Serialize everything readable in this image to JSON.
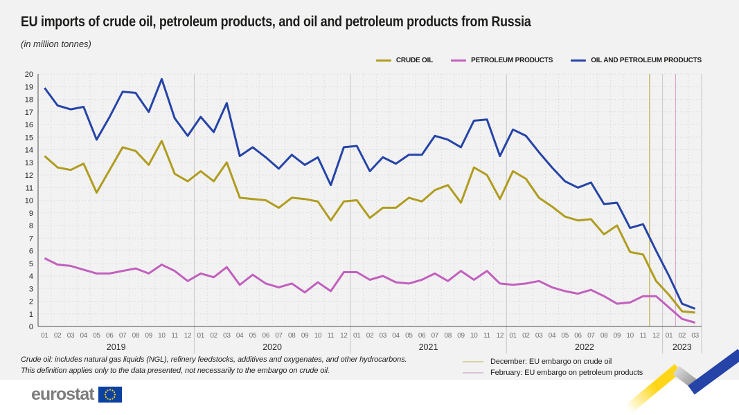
{
  "page": {
    "title": "EU imports of crude oil, petroleum products, and oil and petroleum products from Russia",
    "subtitle": "(in million tonnes)"
  },
  "chart_data": {
    "type": "line",
    "title": "EU imports of crude oil, petroleum products, and oil and petroleum products from Russia",
    "ylabel": "million tonnes",
    "ylim": [
      0,
      20
    ],
    "ytick_step": 1,
    "grid": true,
    "legend_position": "top-right",
    "years": [
      {
        "label": "2019",
        "months": [
          "01",
          "02",
          "03",
          "04",
          "05",
          "06",
          "07",
          "08",
          "09",
          "10",
          "11",
          "12"
        ]
      },
      {
        "label": "2020",
        "months": [
          "01",
          "02",
          "03",
          "04",
          "05",
          "06",
          "07",
          "08",
          "09",
          "10",
          "11",
          "12"
        ]
      },
      {
        "label": "2021",
        "months": [
          "01",
          "02",
          "03",
          "04",
          "05",
          "06",
          "07",
          "08",
          "09",
          "10",
          "11",
          "12"
        ]
      },
      {
        "label": "2022",
        "months": [
          "01",
          "02",
          "03",
          "04",
          "05",
          "06",
          "07",
          "08",
          "09",
          "10",
          "11",
          "12"
        ]
      },
      {
        "label": "2023",
        "months": [
          "01",
          "02",
          "03"
        ]
      }
    ],
    "series": [
      {
        "name": "CRUDE OIL",
        "color": "#B09C1E",
        "values": [
          13.5,
          12.6,
          12.4,
          12.9,
          10.6,
          12.4,
          14.2,
          13.9,
          12.8,
          14.7,
          12.1,
          11.5,
          12.3,
          11.5,
          13.0,
          10.2,
          10.1,
          10.0,
          9.4,
          10.2,
          10.1,
          9.9,
          8.4,
          9.9,
          10.0,
          8.6,
          9.4,
          9.4,
          10.2,
          9.9,
          10.8,
          11.2,
          9.8,
          12.6,
          12.0,
          10.1,
          12.3,
          11.7,
          10.2,
          9.5,
          8.7,
          8.4,
          8.5,
          7.3,
          8.0,
          5.9,
          5.7,
          3.6,
          2.5,
          1.2,
          1.1
        ]
      },
      {
        "name": "PETROLEUM PRODUCTS",
        "color": "#C160BE",
        "values": [
          5.4,
          4.9,
          4.8,
          4.5,
          4.2,
          4.2,
          4.4,
          4.6,
          4.2,
          4.9,
          4.4,
          3.6,
          4.2,
          3.9,
          4.7,
          3.3,
          4.1,
          3.4,
          3.1,
          3.4,
          2.7,
          3.5,
          2.8,
          4.3,
          4.3,
          3.7,
          4.0,
          3.5,
          3.4,
          3.7,
          4.2,
          3.6,
          4.4,
          3.7,
          4.4,
          3.4,
          3.3,
          3.4,
          3.6,
          3.1,
          2.8,
          2.6,
          2.9,
          2.4,
          1.8,
          1.9,
          2.4,
          2.4,
          1.5,
          0.6,
          0.3
        ]
      },
      {
        "name": "OIL AND PETROLEUM PRODUCTS",
        "color": "#2644A7",
        "values": [
          18.9,
          17.5,
          17.2,
          17.4,
          14.8,
          16.6,
          18.6,
          18.5,
          17.0,
          19.6,
          16.5,
          15.1,
          16.6,
          15.4,
          17.7,
          13.5,
          14.2,
          13.4,
          12.5,
          13.6,
          12.8,
          13.4,
          11.2,
          14.2,
          14.3,
          12.3,
          13.4,
          12.9,
          13.6,
          13.6,
          15.1,
          14.8,
          14.2,
          16.3,
          16.4,
          13.5,
          15.6,
          15.1,
          13.8,
          12.6,
          11.5,
          11.0,
          11.4,
          9.7,
          9.8,
          7.8,
          8.1,
          6.0,
          4.0,
          1.8,
          1.4
        ]
      }
    ],
    "annotations": [
      {
        "month": "12",
        "year": "2022",
        "boundary_index": 47,
        "line_color": "#BFAE4E",
        "legend_swatch_color": "#D8D2A2",
        "label": "December: EU embargo on crude oil"
      },
      {
        "month": "02",
        "year": "2023",
        "boundary_index": 49,
        "line_color": "#D9A9D2",
        "legend_swatch_color": "#DCC0D8",
        "label": "February: EU embargo on petroleum products"
      }
    ]
  },
  "footnotes": [
    "Crude oil: includes natural gas liquids (NGL), refinery feedstocks, additives and oxygenates, and other hydrocarbons.",
    "This definition applies only to the data presented, not necessarily to the embargo on crude oil."
  ],
  "footer": {
    "logo_text": "eurostat"
  }
}
